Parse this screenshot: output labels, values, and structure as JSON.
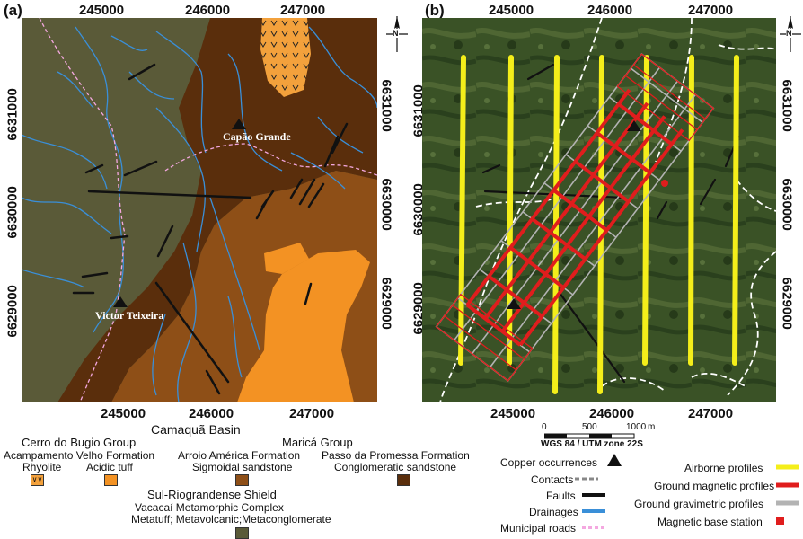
{
  "panel_a": {
    "label": "(a)",
    "x_ticks": [
      "245000",
      "246000",
      "247000"
    ],
    "y_ticks": [
      "6631000",
      "6630000",
      "6629000"
    ],
    "places": [
      "Capão Grande",
      "Victor Teixeira"
    ],
    "north": "N"
  },
  "panel_b": {
    "label": "(b)",
    "x_ticks": [
      "245000",
      "246000",
      "247000"
    ],
    "y_ticks": [
      "6631000",
      "6630000",
      "6629000"
    ],
    "north": "N",
    "scale_ticks": [
      "0",
      "500",
      "1000"
    ],
    "scale_unit": "m",
    "crs": "WGS 84 / UTM zone 22S"
  },
  "geology_legend": {
    "basin": "Camaquã Basin",
    "cerro_group": "Cerro do Bugio Group",
    "acampamento": "Acampamento Velho Formation",
    "rhyolite": "Rhyolite",
    "acidic_tuff": "Acidic tuff",
    "marica_group": "Maricá Group",
    "arroio": "Arroio América Formation",
    "sigmoidal": "Sigmoidal sandstone",
    "passo": "Passo da Promessa Formation",
    "conglomeratic": "Conglomeratic sandstone",
    "shield": "Sul-Riograndense Shield",
    "vacacai": "Vacacaí Metamorphic Complex",
    "metatuff": "Metatuff; Metavolcanic;Metaconglomerate"
  },
  "feature_legend": {
    "copper": "Copper occurrences",
    "contacts": "Contacts",
    "faults": "Faults",
    "drainages": "Drainages",
    "roads": "Municipal roads"
  },
  "survey_legend": {
    "airborne": "Airborne profiles",
    "ground_magnetic": "Ground magnetic profiles",
    "ground_gravimetric": "Ground gravimetric profiles",
    "base_station": "Magnetic base station"
  },
  "colors": {
    "metamorphic": "#5a5a38",
    "passo": "#5a2e0c",
    "arroio": "#8e4f17",
    "tuff": "#f39223",
    "rhyolite": "#f3a13c",
    "drainage": "#3a8fd8",
    "road": "#f4a8e0",
    "airborne": "#f4ee1a",
    "magnetic": "#e01d1d",
    "gravimetric": "#b3b3b3"
  }
}
